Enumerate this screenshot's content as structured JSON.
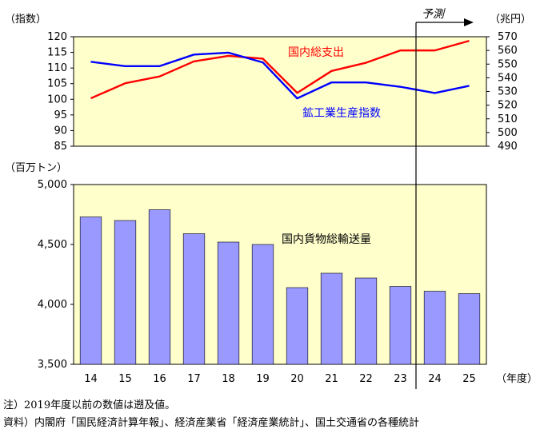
{
  "chart_data": [
    {
      "type": "line",
      "x": [
        "14",
        "15",
        "16",
        "17",
        "18",
        "19",
        "20",
        "21",
        "22",
        "23",
        "24",
        "25"
      ],
      "left_axis": {
        "label": "（指数）",
        "ylim": [
          85,
          120
        ],
        "ticks": [
          85,
          90,
          95,
          100,
          105,
          110,
          115,
          120
        ]
      },
      "right_axis": {
        "label": "（兆円）",
        "ylim": [
          490,
          570
        ],
        "ticks": [
          490,
          500,
          510,
          520,
          530,
          540,
          550,
          560,
          570
        ]
      },
      "series": [
        {
          "name": "国内総支出",
          "axis": "right",
          "color": "#ff0000",
          "values": [
            525,
            536,
            541,
            552,
            556,
            554,
            529,
            545,
            551,
            560,
            560,
            567
          ]
        },
        {
          "name": "鉱工業生産指数",
          "axis": "left",
          "color": "#0000ff",
          "values": [
            112.0,
            110.6,
            110.6,
            114.3,
            114.9,
            111.8,
            100.3,
            105.4,
            105.4,
            104.0,
            102.0,
            104.3
          ]
        }
      ],
      "grid": false
    },
    {
      "type": "bar",
      "categories": [
        "14",
        "15",
        "16",
        "17",
        "18",
        "19",
        "20",
        "21",
        "22",
        "23",
        "24",
        "25"
      ],
      "values": [
        4730,
        4700,
        4790,
        4590,
        4520,
        4500,
        4140,
        4260,
        4220,
        4150,
        4110,
        4090
      ],
      "label": "国内貨物総輸送量",
      "ylabel": "（百万トン）",
      "ylim": [
        3500,
        5000
      ],
      "ticks": [
        3500,
        4000,
        4500,
        5000
      ],
      "tick_labels": [
        "3,500",
        "4,000",
        "4,500",
        "5,000"
      ],
      "xlabel": "（年度）",
      "bar_color": "#9999ff",
      "grid": false
    }
  ],
  "forecast_label": "予測",
  "colors": {
    "panel_bg": "#ffffcc"
  },
  "notes": [
    "注）2019年度以前の数値は遡及値。",
    "資料）内閣府「国民経済計算年報」、経済産業省「経済産業統計」、国土交通省の各種統計"
  ]
}
